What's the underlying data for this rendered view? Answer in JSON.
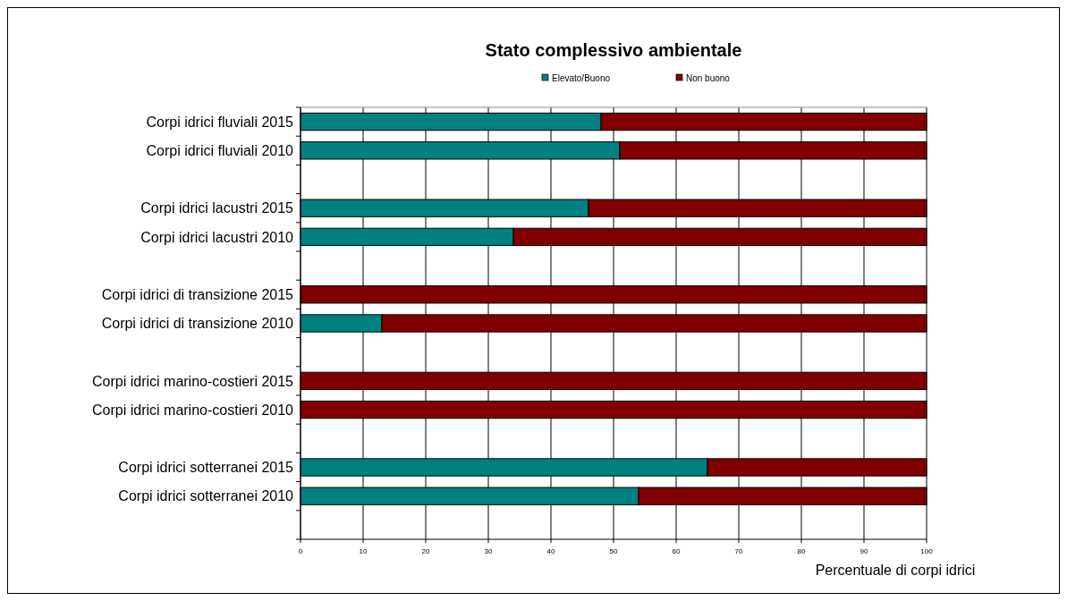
{
  "chart_data": {
    "type": "bar",
    "orientation": "horizontal",
    "stacked": true,
    "title": "Stato  complessivo ambientale",
    "xlabel": "Percentuale di corpi idrici",
    "categories": [
      "Corpi idrici fluviali 2015",
      "Corpi idrici fluviali 2010",
      null,
      "Corpi idrici lacustri 2015",
      "Corpi idrici lacustri 2010",
      null,
      "Corpi idrici di transizione 2015",
      "Corpi idrici di transizione 2010",
      null,
      "Corpi idrici marino-costieri 2015",
      "Corpi idrici marino-costieri 2010",
      null,
      "Corpi idrici sotterranei 2015",
      "Corpi idrici sotterranei 2010",
      null
    ],
    "series": [
      {
        "name": "Elevato/Buono",
        "color": "#008080",
        "values": [
          48,
          51,
          null,
          46,
          34,
          null,
          0,
          13,
          null,
          0,
          0,
          null,
          65,
          54,
          null
        ]
      },
      {
        "name": "Non buono",
        "color": "#800000",
        "values": [
          52,
          49,
          null,
          54,
          66,
          null,
          100,
          87,
          null,
          100,
          100,
          null,
          35,
          46,
          null
        ]
      }
    ],
    "xlim": [
      0,
      100
    ],
    "xticks": [
      0,
      10,
      20,
      30,
      40,
      50,
      60,
      70,
      80,
      90,
      100
    ],
    "grid": "x",
    "legend": "top"
  }
}
